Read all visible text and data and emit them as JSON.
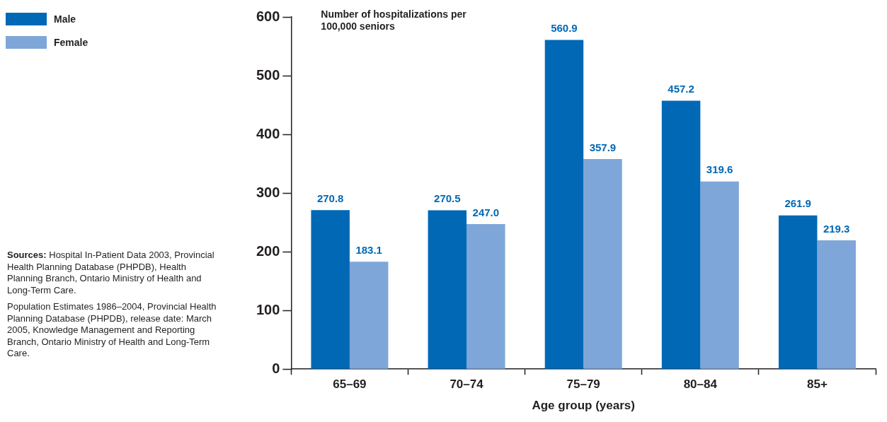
{
  "chart_data": {
    "type": "bar",
    "ylabel": "Number of hospitalizations per 100,000 seniors",
    "xlabel": "Age group (years)",
    "categories": [
      "65–69",
      "70–74",
      "75–79",
      "80–84",
      "85+"
    ],
    "series": [
      {
        "name": "Male",
        "color": "#0068b5",
        "values": [
          270.8,
          270.5,
          560.9,
          457.2,
          261.9
        ],
        "value_labels": [
          "270.8",
          "270.5",
          "560.9",
          "457.2",
          "261.9"
        ]
      },
      {
        "name": "Female",
        "color": "#7fa6d8",
        "values": [
          183.1,
          247.0,
          357.9,
          319.6,
          219.3
        ],
        "value_labels": [
          "183.1",
          "247.0",
          "357.9",
          "319.6",
          "219.3"
        ]
      }
    ],
    "ylim": [
      0,
      600
    ],
    "yticks": [
      0,
      100,
      200,
      300,
      400,
      500,
      600
    ],
    "grid": false,
    "legend": "top left",
    "annotations": [
      "Sources: Hospital In-Patient Data 2003, Provincial Health Planning Database (PHPDB), Health Planning Branch, Ontario Ministry of Health and Long-Term Care.",
      "Population Estimates 1986–2004, Provincial Health Planning Database (PHPDB), release date: March 2005, Knowledge Management and Reporting Branch, Ontario Ministry of Health and Long-Term Care."
    ]
  }
}
